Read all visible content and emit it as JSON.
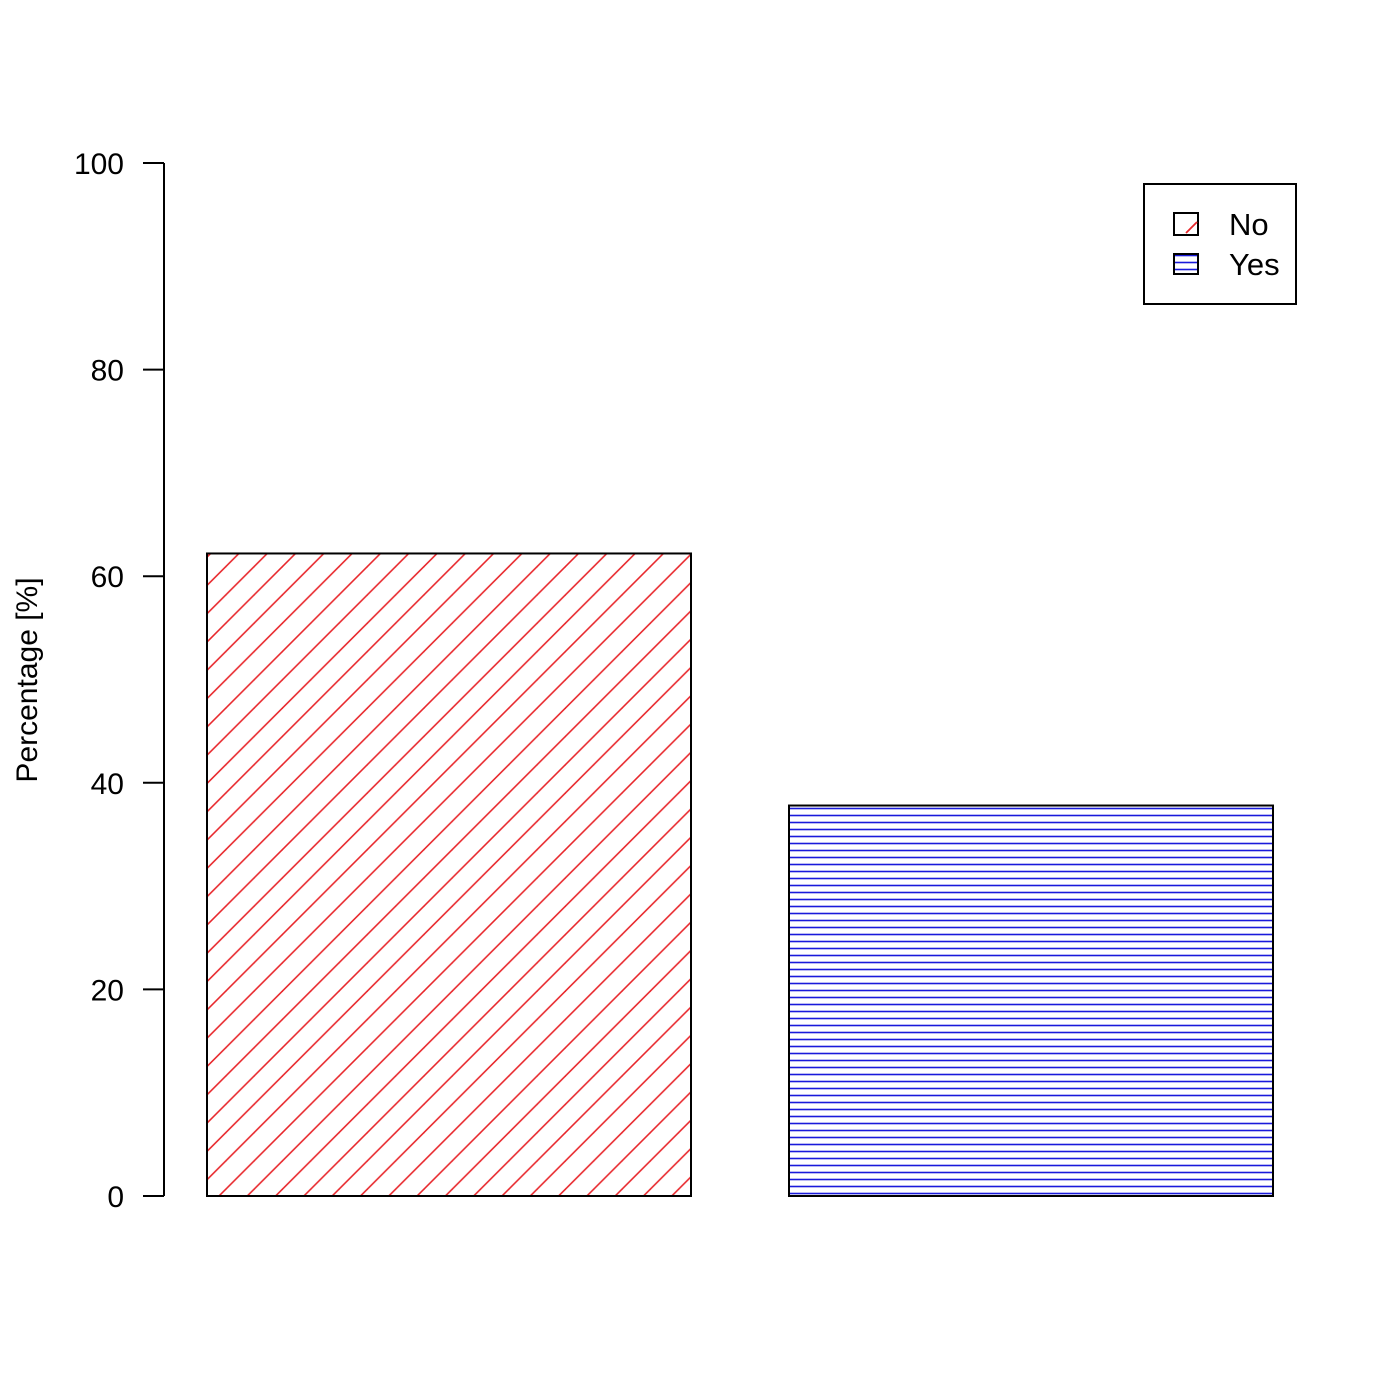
{
  "chart_data": {
    "type": "bar",
    "categories": [
      "No",
      "Yes"
    ],
    "values": [
      62.2,
      37.8
    ],
    "title": "",
    "xlabel": "",
    "ylabel": "Percentage [%]",
    "ylim": [
      0,
      100
    ],
    "yticks": [
      "0",
      "20",
      "40",
      "60",
      "80",
      "100"
    ],
    "grid": false,
    "legend": {
      "position": "top-right",
      "entries": [
        "No",
        "Yes"
      ]
    },
    "colors": {
      "No": "#e8262b",
      "Yes": "#1a1adb"
    },
    "fill_patterns": {
      "No": "diagonal-hatch",
      "Yes": "horizontal-hatch"
    }
  }
}
